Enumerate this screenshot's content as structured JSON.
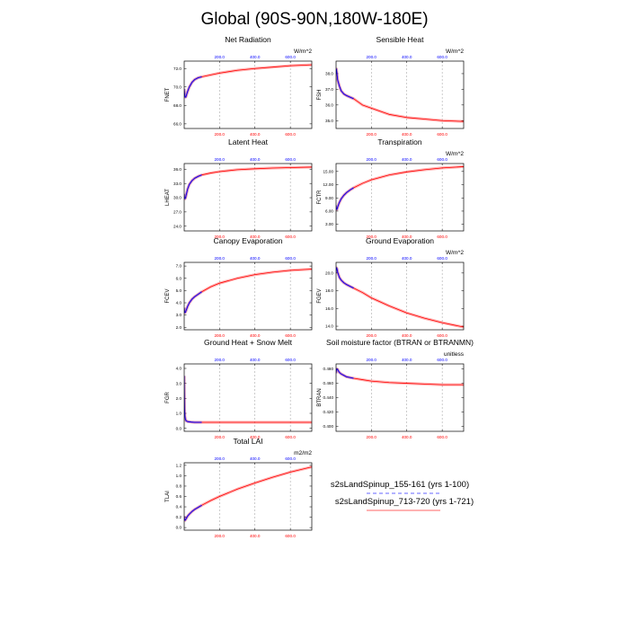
{
  "title": "Global (90S-90N,180W-180E)",
  "colors": {
    "case1": "#0000ff",
    "case2": "#ff0000",
    "grid": "#999999",
    "frame": "#000000"
  },
  "legend": {
    "entries": [
      {
        "label": "s2sLandSpinup_155-161 (yrs 1-100)",
        "color": "#0000ff",
        "style": "dashed"
      },
      {
        "label": "s2sLandSpinup_713-720 (yrs 1-721)",
        "color": "#ff0000",
        "style": "solid"
      }
    ]
  },
  "chart_data": [
    {
      "type": "line",
      "title": "Net Radiation",
      "ylabel": "FNET",
      "units": "W/m^2",
      "ylim": [
        65.5,
        72.8
      ],
      "yticks": [
        "66.0",
        "68.0",
        "70.0",
        "72.0"
      ],
      "xticks": [
        "200.0",
        "400.0",
        "600.0"
      ],
      "xlim": [
        1,
        721
      ],
      "series": [
        {
          "x": [
            1,
            3,
            6,
            10,
            15,
            20,
            30,
            45,
            60,
            80,
            100
          ],
          "y": [
            69.8,
            69.3,
            68.9,
            68.9,
            69.2,
            69.5,
            70.0,
            70.5,
            70.8,
            71.0,
            71.1
          ]
        },
        {
          "x": [
            1,
            3,
            6,
            10,
            15,
            20,
            30,
            45,
            60,
            80,
            100,
            150,
            200,
            300,
            400,
            500,
            600,
            721
          ],
          "y": [
            69.8,
            69.3,
            68.9,
            68.9,
            69.2,
            69.5,
            70.0,
            70.5,
            70.8,
            71.0,
            71.1,
            71.3,
            71.5,
            71.8,
            72.0,
            72.15,
            72.3,
            72.4
          ]
        }
      ]
    },
    {
      "type": "line",
      "title": "Sensible Heat",
      "ylabel": "FSH",
      "units": "W/m^2",
      "ylim": [
        34.5,
        38.8
      ],
      "yticks": [
        "35.0",
        "36.0",
        "37.0",
        "38.0"
      ],
      "xticks": [
        "200.0",
        "400.0",
        "600.0"
      ],
      "xlim": [
        1,
        721
      ],
      "series": [
        {
          "x": [
            1,
            3,
            6,
            10,
            20,
            30,
            45,
            60,
            80,
            100
          ],
          "y": [
            38.0,
            38.3,
            38.0,
            37.6,
            37.2,
            36.9,
            36.7,
            36.6,
            36.5,
            36.4
          ]
        },
        {
          "x": [
            1,
            3,
            6,
            10,
            20,
            30,
            45,
            60,
            80,
            100,
            150,
            200,
            300,
            400,
            500,
            600,
            721
          ],
          "y": [
            38.0,
            38.3,
            38.0,
            37.6,
            37.2,
            36.9,
            36.7,
            36.6,
            36.5,
            36.4,
            36.0,
            35.8,
            35.4,
            35.2,
            35.1,
            35.0,
            34.95
          ]
        }
      ]
    },
    {
      "type": "line",
      "title": "Latent Heat",
      "ylabel": "LHEAT",
      "units": "",
      "ylim": [
        23.0,
        37.2
      ],
      "yticks": [
        "24.0",
        "27.0",
        "30.0",
        "33.0",
        "36.0"
      ],
      "xticks": [
        "200.0",
        "400.0",
        "600.0"
      ],
      "xlim": [
        1,
        721
      ],
      "series": [
        {
          "x": [
            1,
            3,
            6,
            10,
            15,
            20,
            30,
            45,
            60,
            80,
            100
          ],
          "y": [
            30.8,
            30.0,
            29.8,
            30.2,
            31.0,
            31.8,
            32.8,
            33.6,
            34.1,
            34.5,
            34.8
          ]
        },
        {
          "x": [
            1,
            3,
            6,
            10,
            15,
            20,
            30,
            45,
            60,
            80,
            100,
            150,
            200,
            300,
            400,
            500,
            600,
            721
          ],
          "y": [
            30.8,
            30.0,
            29.8,
            30.2,
            31.0,
            31.8,
            32.8,
            33.6,
            34.1,
            34.5,
            34.8,
            35.2,
            35.5,
            35.9,
            36.1,
            36.25,
            36.35,
            36.45
          ]
        }
      ]
    },
    {
      "type": "line",
      "title": "Transpiration",
      "ylabel": "FCTR",
      "units": "W/m^2",
      "ylim": [
        1.5,
        16.8
      ],
      "yticks": [
        "3.00",
        "6.00",
        "9.00",
        "12.00",
        "15.00"
      ],
      "xticks": [
        "200.0",
        "400.0",
        "600.0"
      ],
      "xlim": [
        1,
        721
      ],
      "series": [
        {
          "x": [
            1,
            3,
            6,
            10,
            15,
            20,
            30,
            45,
            60,
            80,
            100
          ],
          "y": [
            7.3,
            6.6,
            6.4,
            6.9,
            7.5,
            8.0,
            8.8,
            9.6,
            10.2,
            10.8,
            11.3
          ]
        },
        {
          "x": [
            1,
            3,
            6,
            10,
            15,
            20,
            30,
            45,
            60,
            80,
            100,
            150,
            200,
            300,
            400,
            500,
            600,
            721
          ],
          "y": [
            7.3,
            6.6,
            6.4,
            6.9,
            7.5,
            8.0,
            8.8,
            9.6,
            10.2,
            10.8,
            11.3,
            12.3,
            13.1,
            14.2,
            14.9,
            15.4,
            15.8,
            16.1
          ]
        }
      ]
    },
    {
      "type": "line",
      "title": "Canopy Evaporation",
      "ylabel": "FCEV",
      "units": "",
      "ylim": [
        1.8,
        7.3
      ],
      "yticks": [
        "2.0",
        "3.0",
        "4.0",
        "5.0",
        "6.0",
        "7.0"
      ],
      "xticks": [
        "200.0",
        "400.0",
        "600.0"
      ],
      "xlim": [
        1,
        721
      ],
      "series": [
        {
          "x": [
            1,
            3,
            6,
            10,
            15,
            20,
            30,
            45,
            60,
            80,
            100
          ],
          "y": [
            3.6,
            3.3,
            3.2,
            3.3,
            3.5,
            3.7,
            4.0,
            4.3,
            4.5,
            4.7,
            4.9
          ]
        },
        {
          "x": [
            1,
            3,
            6,
            10,
            15,
            20,
            30,
            45,
            60,
            80,
            100,
            150,
            200,
            300,
            400,
            500,
            600,
            721
          ],
          "y": [
            3.6,
            3.3,
            3.2,
            3.3,
            3.5,
            3.7,
            4.0,
            4.3,
            4.5,
            4.7,
            4.9,
            5.3,
            5.6,
            6.0,
            6.3,
            6.5,
            6.65,
            6.75
          ]
        }
      ]
    },
    {
      "type": "line",
      "title": "Ground Evaporation",
      "ylabel": "FGEV",
      "units": "W/m^2",
      "ylim": [
        13.6,
        21.2
      ],
      "yticks": [
        "14.0",
        "16.0",
        "18.0",
        "20.0"
      ],
      "xticks": [
        "200.0",
        "400.0",
        "600.0"
      ],
      "xlim": [
        1,
        721
      ],
      "series": [
        {
          "x": [
            1,
            3,
            6,
            10,
            15,
            20,
            30,
            45,
            60,
            80,
            100
          ],
          "y": [
            20.0,
            20.6,
            20.5,
            20.1,
            19.8,
            19.5,
            19.2,
            18.9,
            18.7,
            18.5,
            18.3
          ]
        },
        {
          "x": [
            1,
            3,
            6,
            10,
            15,
            20,
            30,
            45,
            60,
            80,
            100,
            150,
            200,
            300,
            400,
            500,
            600,
            721
          ],
          "y": [
            20.0,
            20.6,
            20.5,
            20.1,
            19.8,
            19.5,
            19.2,
            18.9,
            18.7,
            18.5,
            18.3,
            17.8,
            17.2,
            16.3,
            15.5,
            14.9,
            14.4,
            13.9
          ]
        }
      ]
    },
    {
      "type": "line",
      "title": "Ground Heat + Snow Melt",
      "ylabel": "FGR",
      "units": "",
      "ylim": [
        -0.2,
        4.3
      ],
      "yticks": [
        "0.0",
        "1.0",
        "2.0",
        "3.0",
        "4.0"
      ],
      "xticks": [
        "200.0",
        "400.0",
        "600.0"
      ],
      "xlim": [
        1,
        721
      ],
      "series": [
        {
          "x": [
            1,
            2,
            3,
            5,
            8,
            12,
            20,
            40,
            60,
            100
          ],
          "y": [
            3.5,
            2.2,
            1.3,
            0.8,
            0.6,
            0.5,
            0.45,
            0.42,
            0.4,
            0.4
          ]
        },
        {
          "x": [
            1,
            2,
            3,
            5,
            8,
            12,
            20,
            40,
            60,
            100,
            200,
            400,
            600,
            721
          ],
          "y": [
            3.5,
            2.2,
            1.3,
            0.8,
            0.6,
            0.5,
            0.45,
            0.42,
            0.4,
            0.4,
            0.4,
            0.4,
            0.4,
            0.4
          ]
        }
      ]
    },
    {
      "type": "line",
      "title": "Soil moisture factor (BTRAN or BTRANMN)",
      "ylabel": "BTRAN",
      "units": "unitless",
      "ylim": [
        0.393,
        0.487
      ],
      "yticks": [
        "0.400",
        "0.420",
        "0.440",
        "0.460",
        "0.480"
      ],
      "xticks": [
        "200.0",
        "400.0",
        "600.0"
      ],
      "xlim": [
        1,
        721
      ],
      "series": [
        {
          "x": [
            1,
            3,
            6,
            10,
            15,
            20,
            30,
            45,
            60,
            80,
            100
          ],
          "y": [
            0.474,
            0.478,
            0.48,
            0.479,
            0.477,
            0.475,
            0.473,
            0.471,
            0.469,
            0.468,
            0.467
          ]
        },
        {
          "x": [
            1,
            3,
            6,
            10,
            15,
            20,
            30,
            45,
            60,
            80,
            100,
            150,
            200,
            300,
            400,
            500,
            600,
            721
          ],
          "y": [
            0.474,
            0.478,
            0.48,
            0.479,
            0.477,
            0.475,
            0.473,
            0.471,
            0.469,
            0.468,
            0.467,
            0.465,
            0.463,
            0.461,
            0.46,
            0.459,
            0.458,
            0.458
          ]
        }
      ]
    },
    {
      "type": "line",
      "title": "Total LAI",
      "ylabel": "TLAI",
      "units": "m2/m2",
      "ylim": [
        -0.05,
        1.25
      ],
      "yticks": [
        "0.0",
        "0.2",
        "0.4",
        "0.6",
        "0.8",
        "1.0",
        "1.2"
      ],
      "xticks": [
        "200.0",
        "400.0",
        "600.0"
      ],
      "xlim": [
        1,
        721
      ],
      "series": [
        {
          "x": [
            1,
            3,
            6,
            10,
            15,
            20,
            30,
            45,
            60,
            80,
            100
          ],
          "y": [
            0.22,
            0.16,
            0.14,
            0.16,
            0.19,
            0.22,
            0.26,
            0.31,
            0.35,
            0.39,
            0.43
          ]
        },
        {
          "x": [
            1,
            3,
            6,
            10,
            15,
            20,
            30,
            45,
            60,
            80,
            100,
            150,
            200,
            300,
            400,
            500,
            600,
            721
          ],
          "y": [
            0.22,
            0.16,
            0.14,
            0.16,
            0.19,
            0.22,
            0.26,
            0.31,
            0.35,
            0.39,
            0.43,
            0.52,
            0.6,
            0.74,
            0.86,
            0.97,
            1.07,
            1.17
          ]
        }
      ]
    }
  ]
}
